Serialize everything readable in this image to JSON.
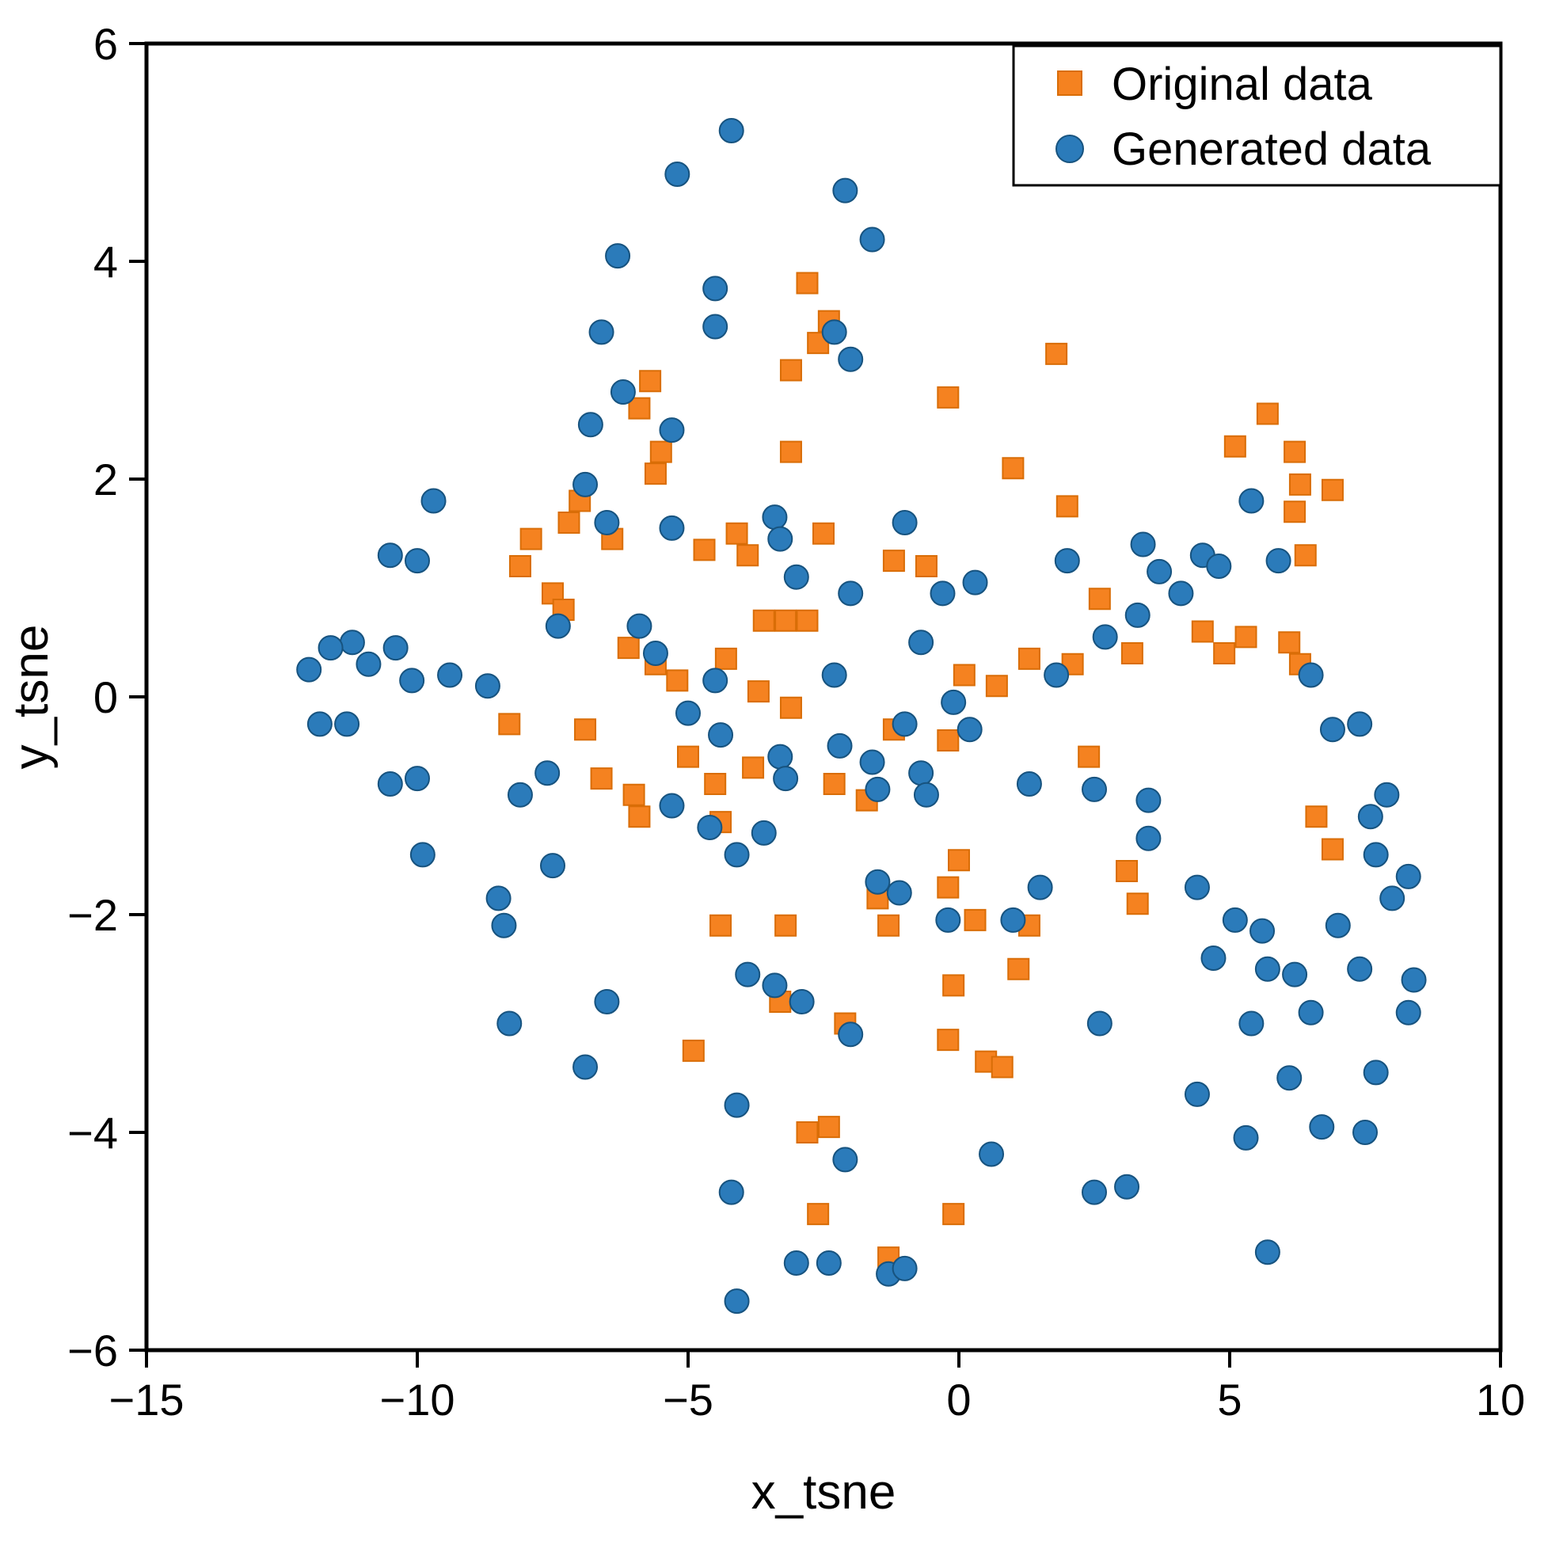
{
  "chart_data": {
    "type": "scatter",
    "title": "",
    "xlabel": "x_tsne",
    "ylabel": "y_tsne",
    "xlim": [
      -15,
      10
    ],
    "ylim": [
      -6,
      6
    ],
    "grid": false,
    "x_ticks": {
      "values": [
        -15,
        -10,
        -5,
        0,
        5,
        10
      ],
      "labels": [
        "−15",
        "−10",
        "−5",
        "0",
        "5",
        "10"
      ]
    },
    "y_ticks": {
      "values": [
        -6,
        -4,
        -2,
        0,
        2,
        4,
        6
      ],
      "labels": [
        "−6",
        "−4",
        "−2",
        "0",
        "2",
        "4",
        "6"
      ]
    },
    "legend": {
      "position": "top-right",
      "entries": [
        "Original data",
        "Generated data"
      ]
    },
    "series": [
      {
        "name": "Original data",
        "marker": "square",
        "color": "#f58220",
        "edge_color": "#d96d07",
        "points": [
          [
            -2.8,
            3.8
          ],
          [
            -2.4,
            3.45
          ],
          [
            -2.6,
            3.25
          ],
          [
            -3.1,
            3.0
          ],
          [
            1.8,
            3.15
          ],
          [
            -5.7,
            2.9
          ],
          [
            -5.9,
            2.65
          ],
          [
            -5.5,
            2.25
          ],
          [
            -5.6,
            2.05
          ],
          [
            -3.1,
            2.25
          ],
          [
            -0.2,
            2.75
          ],
          [
            1.0,
            2.1
          ],
          [
            2.0,
            1.75
          ],
          [
            5.1,
            2.3
          ],
          [
            5.7,
            2.6
          ],
          [
            6.2,
            2.25
          ],
          [
            6.3,
            1.95
          ],
          [
            6.9,
            1.9
          ],
          [
            6.2,
            1.7
          ],
          [
            -7.9,
            1.45
          ],
          [
            -7.0,
            1.8
          ],
          [
            -7.2,
            1.6
          ],
          [
            -6.4,
            1.45
          ],
          [
            -4.7,
            1.35
          ],
          [
            -4.1,
            1.5
          ],
          [
            -3.9,
            1.3
          ],
          [
            -2.5,
            1.5
          ],
          [
            -1.2,
            1.25
          ],
          [
            -0.6,
            1.2
          ],
          [
            -8.1,
            1.2
          ],
          [
            -7.5,
            0.95
          ],
          [
            -7.3,
            0.8
          ],
          [
            -6.1,
            0.45
          ],
          [
            -5.6,
            0.3
          ],
          [
            -4.3,
            0.35
          ],
          [
            -3.6,
            0.7
          ],
          [
            -3.2,
            0.7
          ],
          [
            -2.8,
            0.7
          ],
          [
            -5.2,
            0.15
          ],
          [
            -3.7,
            0.05
          ],
          [
            -3.1,
            -0.1
          ],
          [
            -8.3,
            -0.25
          ],
          [
            -6.9,
            -0.3
          ],
          [
            -6.6,
            -0.75
          ],
          [
            -6.0,
            -0.9
          ],
          [
            -5.9,
            -1.1
          ],
          [
            -5.0,
            -0.55
          ],
          [
            -4.5,
            -0.8
          ],
          [
            -3.8,
            -0.65
          ],
          [
            -2.3,
            -0.8
          ],
          [
            -1.7,
            -0.95
          ],
          [
            -1.2,
            -0.3
          ],
          [
            -0.2,
            -0.4
          ],
          [
            0.1,
            0.2
          ],
          [
            0.7,
            0.1
          ],
          [
            1.3,
            0.35
          ],
          [
            2.1,
            0.3
          ],
          [
            2.4,
            -0.55
          ],
          [
            3.2,
            0.4
          ],
          [
            4.5,
            0.6
          ],
          [
            4.9,
            0.4
          ],
          [
            5.3,
            0.55
          ],
          [
            6.1,
            0.5
          ],
          [
            6.3,
            0.3
          ],
          [
            6.4,
            1.3
          ],
          [
            -4.4,
            -2.1
          ],
          [
            -3.2,
            -2.1
          ],
          [
            -1.5,
            -1.85
          ],
          [
            -1.3,
            -2.1
          ],
          [
            0.0,
            -1.5
          ],
          [
            -0.2,
            -1.75
          ],
          [
            0.3,
            -2.05
          ],
          [
            1.3,
            -2.1
          ],
          [
            1.1,
            -2.5
          ],
          [
            -0.1,
            -2.65
          ],
          [
            -3.3,
            -2.8
          ],
          [
            -2.1,
            -3.0
          ],
          [
            -0.2,
            -3.15
          ],
          [
            0.5,
            -3.35
          ],
          [
            -4.9,
            -3.25
          ],
          [
            -2.8,
            -4.0
          ],
          [
            -2.4,
            -3.95
          ],
          [
            -2.6,
            -4.75
          ],
          [
            -0.1,
            -4.75
          ],
          [
            -1.3,
            -5.15
          ],
          [
            3.1,
            -1.6
          ],
          [
            3.3,
            -1.9
          ],
          [
            6.6,
            -1.1
          ],
          [
            6.9,
            -1.4
          ],
          [
            2.6,
            0.9
          ],
          [
            -4.4,
            -1.15
          ],
          [
            0.8,
            -3.4
          ]
        ]
      },
      {
        "name": "Generated data",
        "marker": "circle",
        "color": "#2b7bba",
        "edge_color": "#17537f",
        "points": [
          [
            -4.2,
            5.2
          ],
          [
            -5.2,
            4.8
          ],
          [
            -2.1,
            4.65
          ],
          [
            -1.6,
            4.2
          ],
          [
            -6.3,
            4.05
          ],
          [
            -4.5,
            3.75
          ],
          [
            -4.5,
            3.4
          ],
          [
            -6.6,
            3.35
          ],
          [
            -2.3,
            3.35
          ],
          [
            -2.0,
            3.1
          ],
          [
            -6.2,
            2.8
          ],
          [
            -6.8,
            2.5
          ],
          [
            -5.3,
            2.45
          ],
          [
            -6.9,
            1.95
          ],
          [
            -9.7,
            1.8
          ],
          [
            -6.5,
            1.6
          ],
          [
            -5.3,
            1.55
          ],
          [
            -3.4,
            1.65
          ],
          [
            -3.3,
            1.45
          ],
          [
            -10.5,
            1.3
          ],
          [
            -10.0,
            1.25
          ],
          [
            -11.2,
            0.5
          ],
          [
            -10.4,
            0.45
          ],
          [
            -11.6,
            0.45
          ],
          [
            -12.0,
            0.25
          ],
          [
            -10.9,
            0.3
          ],
          [
            -9.4,
            0.2
          ],
          [
            -10.1,
            0.15
          ],
          [
            -8.7,
            0.1
          ],
          [
            -11.8,
            -0.25
          ],
          [
            -11.3,
            -0.25
          ],
          [
            -10.5,
            -0.8
          ],
          [
            -10.0,
            -0.75
          ],
          [
            -9.9,
            -1.45
          ],
          [
            -8.5,
            -1.85
          ],
          [
            -8.4,
            -2.1
          ],
          [
            -8.1,
            -0.9
          ],
          [
            -7.6,
            -0.7
          ],
          [
            -7.5,
            -1.55
          ],
          [
            -8.3,
            -3.0
          ],
          [
            -6.9,
            -3.4
          ],
          [
            -6.5,
            -2.8
          ],
          [
            -5.9,
            0.65
          ],
          [
            -5.6,
            0.4
          ],
          [
            -4.5,
            0.15
          ],
          [
            -5.0,
            -0.15
          ],
          [
            -4.4,
            -0.35
          ],
          [
            -5.3,
            -1.0
          ],
          [
            -4.6,
            -1.2
          ],
          [
            -4.1,
            -1.45
          ],
          [
            -3.6,
            -1.25
          ],
          [
            -3.3,
            -0.55
          ],
          [
            -3.2,
            -0.75
          ],
          [
            -2.3,
            0.2
          ],
          [
            -2.2,
            -0.45
          ],
          [
            -1.6,
            -0.6
          ],
          [
            -1.5,
            -0.85
          ],
          [
            -0.7,
            -0.7
          ],
          [
            -0.6,
            -0.9
          ],
          [
            -0.1,
            -0.05
          ],
          [
            -1.0,
            -0.25
          ],
          [
            0.2,
            -0.3
          ],
          [
            -3.0,
            1.1
          ],
          [
            -2.0,
            0.95
          ],
          [
            -1.0,
            1.6
          ],
          [
            -0.7,
            0.5
          ],
          [
            -0.3,
            0.95
          ],
          [
            0.3,
            1.05
          ],
          [
            1.3,
            -0.8
          ],
          [
            2.0,
            1.25
          ],
          [
            2.7,
            0.55
          ],
          [
            3.4,
            1.4
          ],
          [
            3.7,
            1.15
          ],
          [
            4.5,
            1.3
          ],
          [
            4.8,
            1.2
          ],
          [
            5.4,
            1.8
          ],
          [
            2.5,
            -0.85
          ],
          [
            3.5,
            -0.95
          ],
          [
            3.5,
            -1.3
          ],
          [
            4.4,
            -1.75
          ],
          [
            4.7,
            -2.4
          ],
          [
            5.1,
            -2.05
          ],
          [
            5.6,
            -2.15
          ],
          [
            5.7,
            -2.5
          ],
          [
            5.4,
            -3.0
          ],
          [
            6.2,
            -2.55
          ],
          [
            6.5,
            -2.9
          ],
          [
            7.4,
            -2.5
          ],
          [
            7.7,
            -1.45
          ],
          [
            7.6,
            -1.1
          ],
          [
            8.0,
            -1.85
          ],
          [
            8.3,
            -1.65
          ],
          [
            7.9,
            -0.9
          ],
          [
            7.4,
            -0.25
          ],
          [
            4.4,
            -3.65
          ],
          [
            5.3,
            -4.05
          ],
          [
            6.7,
            -3.95
          ],
          [
            7.5,
            -4.0
          ],
          [
            7.7,
            -3.45
          ],
          [
            6.1,
            -3.5
          ],
          [
            5.7,
            -5.1
          ],
          [
            -4.1,
            -3.75
          ],
          [
            -4.2,
            -4.55
          ],
          [
            -3.0,
            -5.2
          ],
          [
            -2.4,
            -5.2
          ],
          [
            -4.1,
            -5.55
          ],
          [
            -1.3,
            -5.3
          ],
          [
            -1.0,
            -5.25
          ],
          [
            0.6,
            -4.2
          ],
          [
            2.5,
            -4.55
          ],
          [
            3.1,
            -4.5
          ],
          [
            -3.9,
            -2.55
          ],
          [
            -3.4,
            -2.65
          ],
          [
            -2.9,
            -2.8
          ],
          [
            -2.0,
            -3.1
          ],
          [
            -2.1,
            -4.25
          ],
          [
            -1.1,
            -1.8
          ],
          [
            -1.5,
            -1.7
          ],
          [
            -0.2,
            -2.05
          ],
          [
            1.5,
            -1.75
          ],
          [
            1.0,
            -2.05
          ],
          [
            2.6,
            -3.0
          ],
          [
            -7.4,
            0.65
          ],
          [
            1.8,
            0.2
          ],
          [
            4.1,
            0.95
          ],
          [
            3.3,
            0.75
          ],
          [
            5.9,
            1.25
          ],
          [
            6.5,
            0.2
          ],
          [
            6.9,
            -0.3
          ],
          [
            8.4,
            -2.6
          ],
          [
            8.3,
            -2.9
          ],
          [
            7.0,
            -2.1
          ]
        ]
      }
    ]
  }
}
